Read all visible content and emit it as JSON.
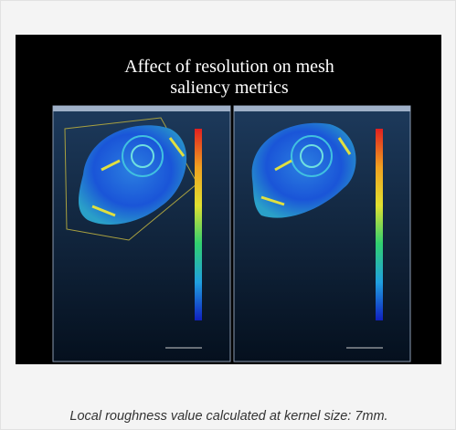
{
  "figure": {
    "title_line1": "Affect of resolution on mesh",
    "title_line2": "saliency metrics"
  },
  "caption": "Local roughness value calculated at kernel size: 7mm."
}
